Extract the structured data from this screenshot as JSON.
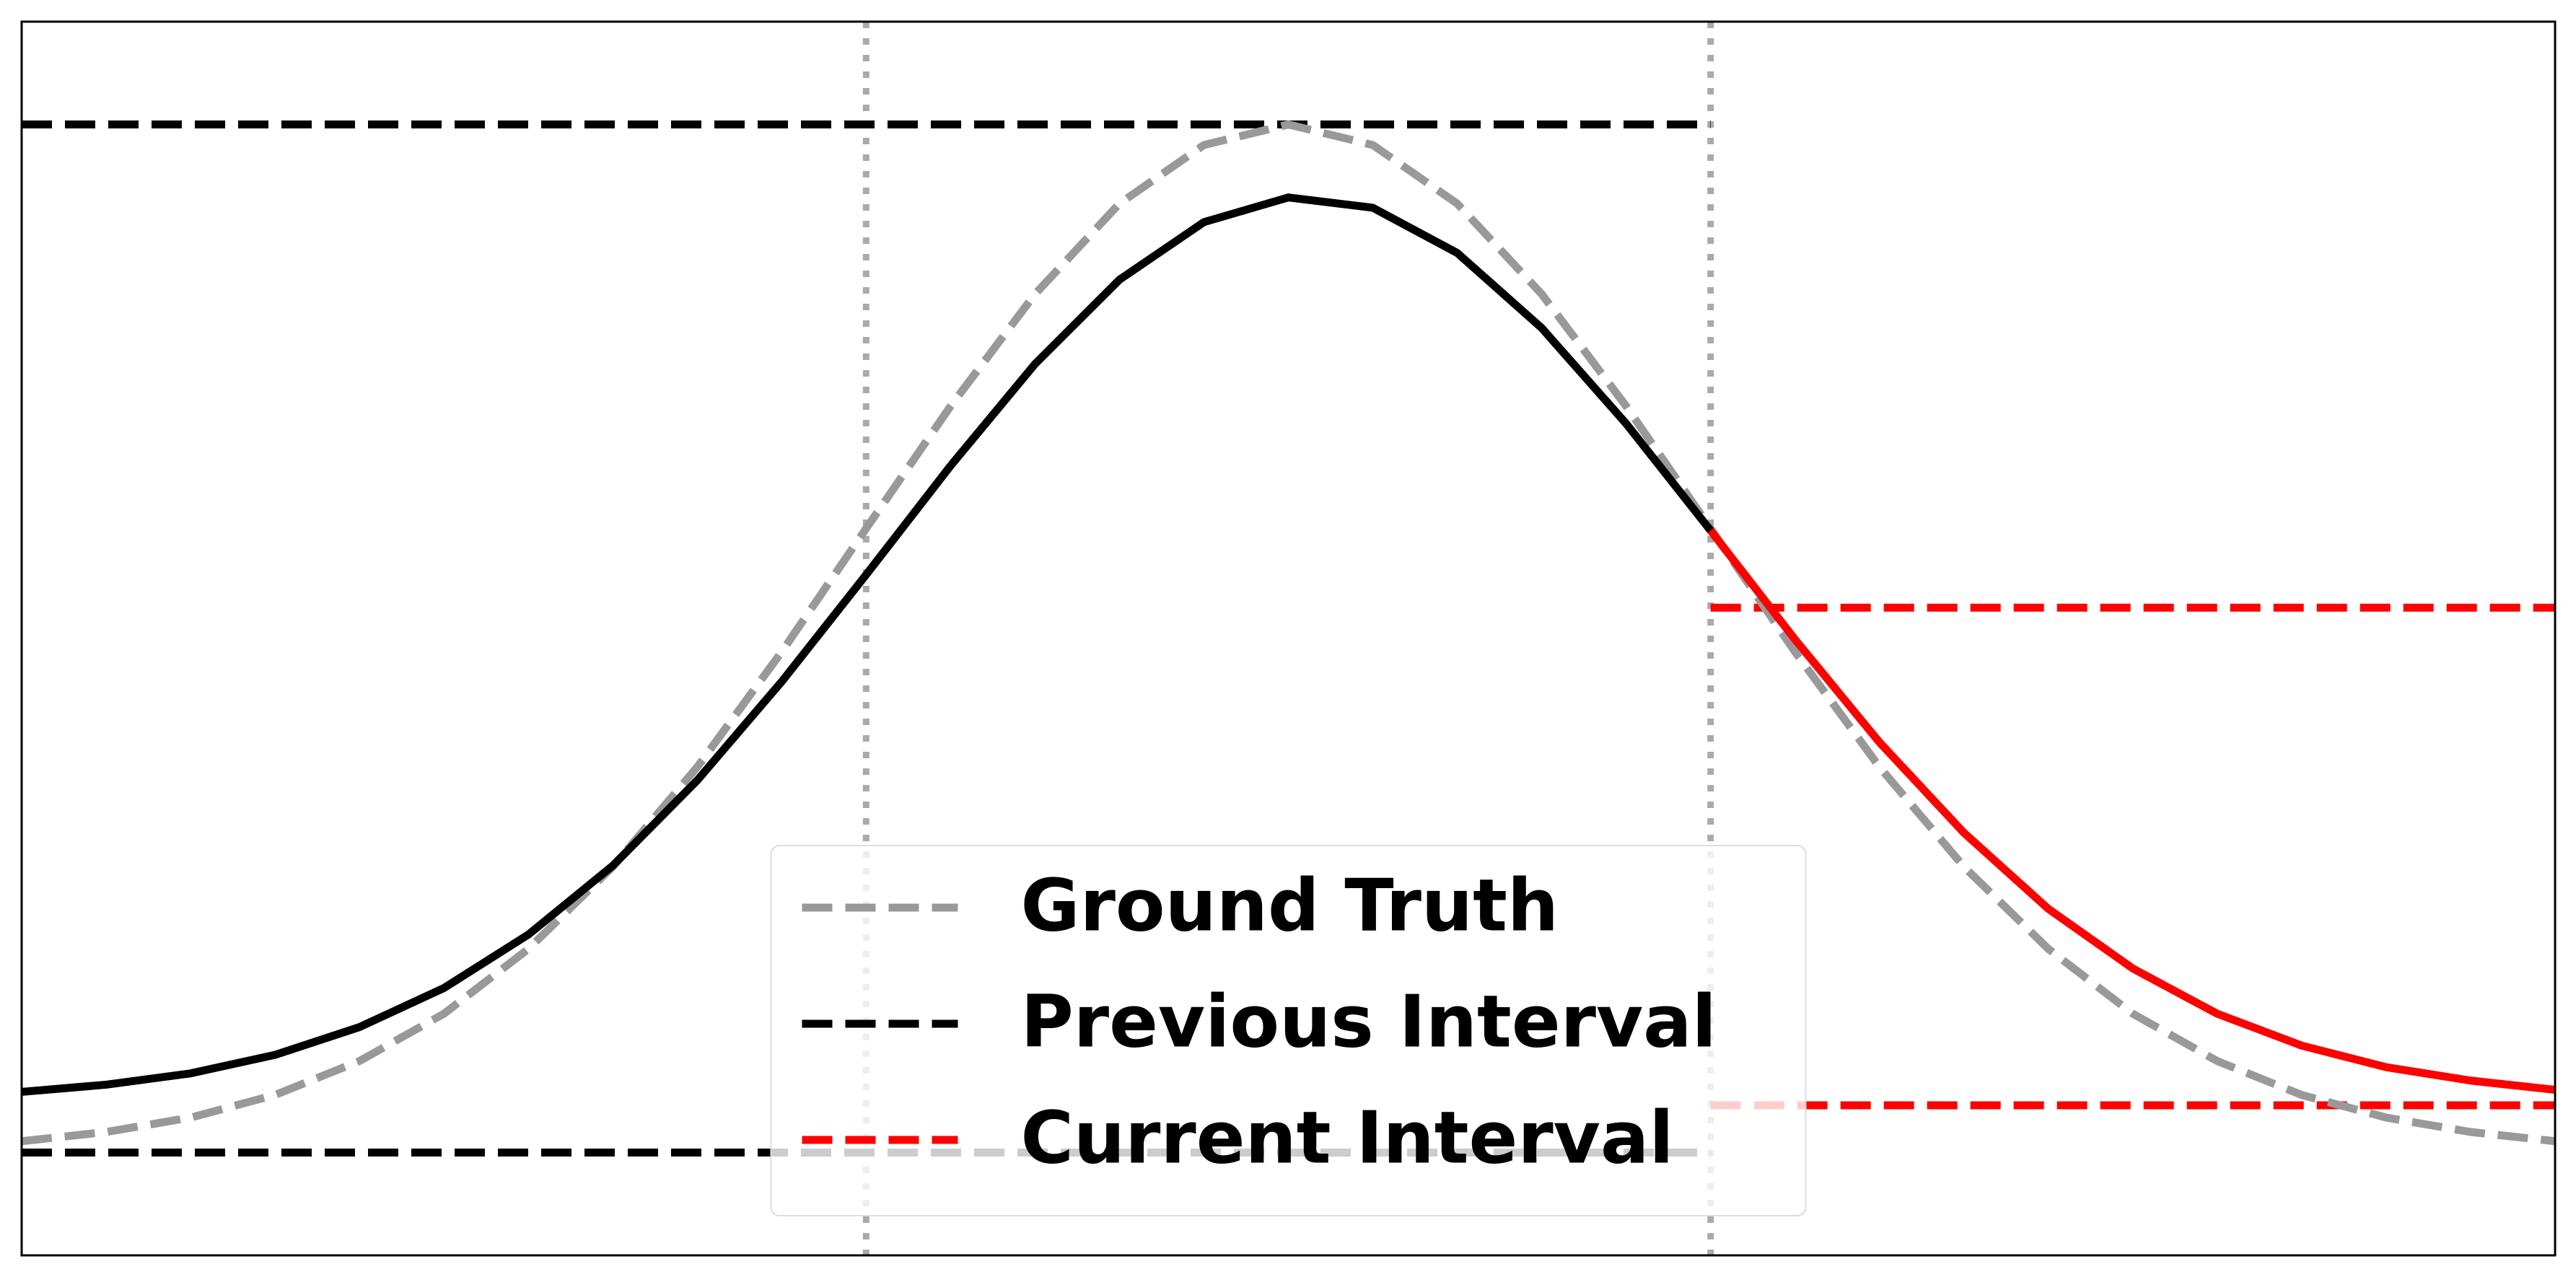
{
  "chart_data": {
    "type": "line",
    "x": [
      0,
      0.1,
      0.2,
      0.3,
      0.4,
      0.5,
      0.6,
      0.7,
      0.8,
      0.9,
      1.0,
      1.1,
      1.2,
      1.3,
      1.4,
      1.5,
      1.6,
      1.7,
      1.8,
      1.9,
      2.0,
      2.1,
      2.2,
      2.3,
      2.4,
      2.5,
      2.6,
      2.7,
      2.8,
      2.9,
      3.0
    ],
    "xlim": [
      0,
      3
    ],
    "ylim": [
      -0.1,
      1.1
    ],
    "vlines": [
      1,
      2
    ],
    "series": [
      {
        "name": "Ground Truth",
        "color": "#999999",
        "dashed": true,
        "values": [
          0.011,
          0.02,
          0.034,
          0.056,
          0.089,
          0.135,
          0.198,
          0.278,
          0.375,
          0.487,
          0.607,
          0.726,
          0.835,
          0.923,
          0.98,
          1.0,
          0.98,
          0.923,
          0.835,
          0.726,
          0.607,
          0.487,
          0.375,
          0.278,
          0.198,
          0.135,
          0.089,
          0.056,
          0.034,
          0.02,
          0.011
        ]
      },
      {
        "color": "#000000",
        "dashed": false,
        "values": [
          0.059,
          0.066,
          0.077,
          0.095,
          0.122,
          0.16,
          0.212,
          0.279,
          0.362,
          0.458,
          0.562,
          0.668,
          0.767,
          0.849,
          0.905,
          0.929,
          0.919,
          0.875,
          0.802,
          0.709,
          0.605,
          null,
          null,
          null,
          null,
          null,
          null,
          null,
          null,
          null,
          null
        ]
      },
      {
        "color": "#ff0000",
        "dashed": false,
        "values": [
          null,
          null,
          null,
          null,
          null,
          null,
          null,
          null,
          null,
          null,
          null,
          null,
          null,
          null,
          null,
          null,
          null,
          null,
          null,
          null,
          0.605,
          0.499,
          0.399,
          0.311,
          0.237,
          0.179,
          0.135,
          0.104,
          0.083,
          0.07,
          0.061
        ]
      }
    ],
    "intervals": [
      {
        "name": "Previous Interval",
        "color": "#000000",
        "xrange": [
          0,
          2
        ],
        "bounds": [
          0,
          1
        ]
      },
      {
        "name": "Current Interval",
        "color": "#ff0000",
        "xrange": [
          2,
          3
        ],
        "bounds": [
          0.046,
          0.53
        ]
      }
    ],
    "legend": "lower center"
  }
}
